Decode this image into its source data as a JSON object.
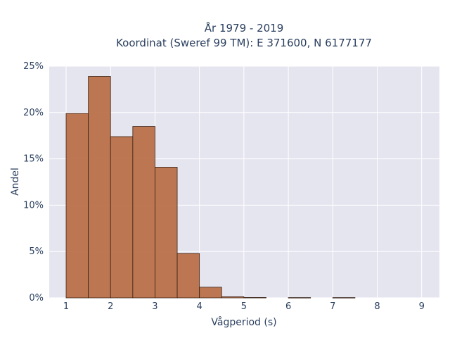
{
  "chart_data": {
    "type": "bar",
    "title": "År 1979 - 2019",
    "subtitle": "Koordinat (Sweref 99 TM): E 371600, N 6177177",
    "xlabel": "Vågperiod (s)",
    "ylabel": "Andel",
    "xlim": [
      0.62,
      9.4
    ],
    "ylim": [
      0,
      25
    ],
    "x_ticks": [
      1,
      2,
      3,
      4,
      5,
      6,
      7,
      8,
      9
    ],
    "y_ticks": [
      0,
      5,
      10,
      15,
      20,
      25
    ],
    "y_tick_labels": [
      "0%",
      "5%",
      "10%",
      "15%",
      "20%",
      "25%"
    ],
    "bin_width": 0.5,
    "bins": [
      {
        "x0": 1.0,
        "x1": 1.5,
        "value": 19.9
      },
      {
        "x0": 1.5,
        "x1": 2.0,
        "value": 23.9
      },
      {
        "x0": 2.0,
        "x1": 2.5,
        "value": 17.4
      },
      {
        "x0": 2.5,
        "x1": 3.0,
        "value": 18.5
      },
      {
        "x0": 3.0,
        "x1": 3.5,
        "value": 14.1
      },
      {
        "x0": 3.5,
        "x1": 4.0,
        "value": 4.8
      },
      {
        "x0": 4.0,
        "x1": 4.5,
        "value": 1.15
      },
      {
        "x0": 4.5,
        "x1": 5.0,
        "value": 0.12
      },
      {
        "x0": 5.0,
        "x1": 5.5,
        "value": 0.04
      },
      {
        "x0": 6.0,
        "x1": 6.5,
        "value": 0.03
      },
      {
        "x0": 7.0,
        "x1": 7.5,
        "value": 0.03
      }
    ],
    "grid": true,
    "background": "#e5e5f0",
    "bar_color": "#b7693f"
  }
}
